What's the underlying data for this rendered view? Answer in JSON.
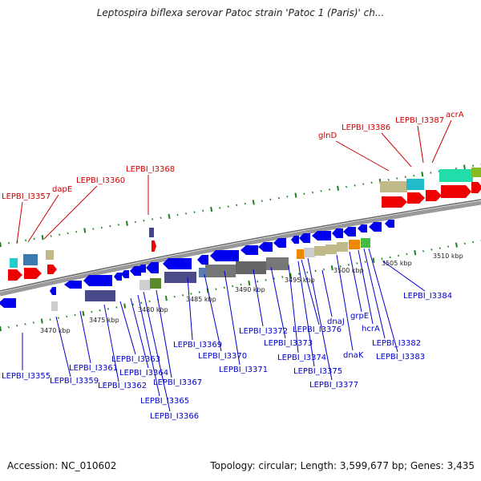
{
  "title": "Leptospira biflexa serovar Patoc strain 'Patoc 1 (Paris)' ch...",
  "footer": {
    "accession": "Accession: NC_010602",
    "stats": "Topology: circular; Length: 3,599,677 bp; Genes: 3,435"
  },
  "colors": {
    "red_label": "#cc0000",
    "blue_label": "#0000cc",
    "backbone": "#888888",
    "tick": "#208020"
  },
  "ticks": [
    "3470 kbp",
    "3475 kbp",
    "3480 kbp",
    "3485 kbp",
    "3490 kbp",
    "3495 kbp",
    "3500 kbp",
    "3505 kbp",
    "3510 kbp"
  ],
  "labels_top": [
    "LEPBI_I3357",
    "dapE",
    "LEPBI_I3360",
    "LEPBI_I3368",
    "glnD",
    "LEPBI_I3386",
    "LEPBI_I3387",
    "acrA"
  ],
  "labels_bottom": [
    "LEPBI_I3355",
    "LEPBI_I3359",
    "LEPBI_I3361",
    "LEPBI_I3362",
    "LEPBI_I3363",
    "LEPBI_I3364",
    "LEPBI_I3365",
    "LEPBI_I3366",
    "LEPBI_I3367",
    "LEPBI_I3369",
    "LEPBI_I3370",
    "LEPBI_I3371",
    "LEPBI_I3372",
    "LEPBI_I3373",
    "LEPBI_I3374",
    "LEPBI_I3375",
    "LEPBI_I3376",
    "LEPBI_I3377",
    "dnaJ",
    "dnaK",
    "grpE",
    "hcrA",
    "LEPBI_I3382",
    "LEPBI_I3383",
    "LEPBI_I3384"
  ]
}
